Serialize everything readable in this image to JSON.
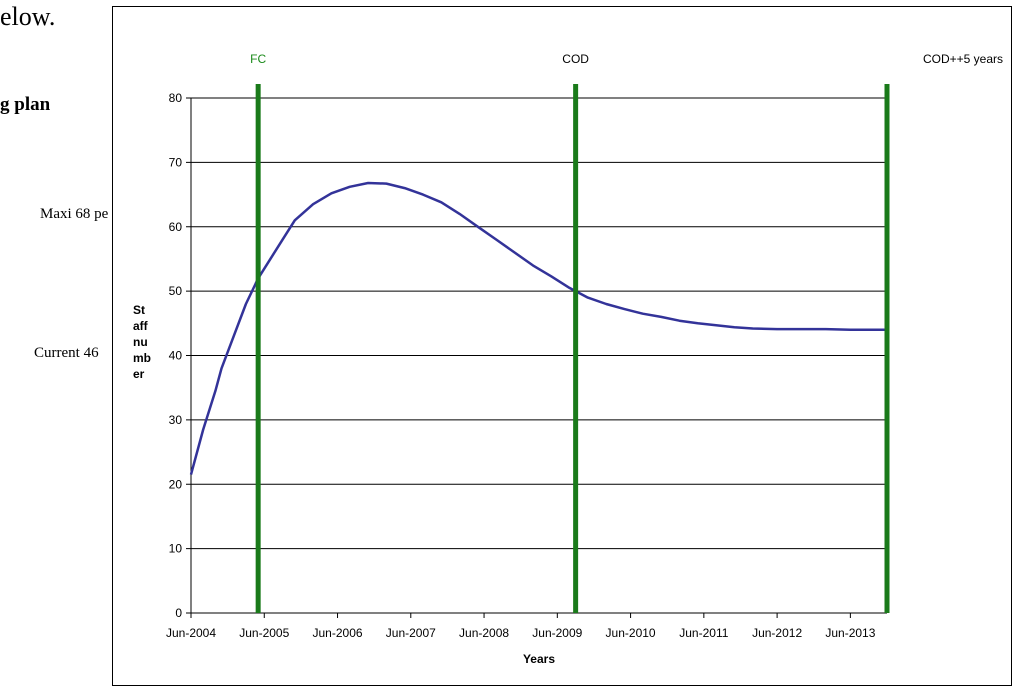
{
  "document": {
    "fragment_top": "elow.",
    "fragment_heading": "g plan",
    "fragment_maxi": "Maxi 68 pe",
    "fragment_current": "Current 46"
  },
  "chart_data": {
    "type": "line",
    "title": "",
    "xlabel": "Years",
    "ylabel_lines": [
      "St",
      "aff",
      "nu",
      "mb",
      "er"
    ],
    "ylim": [
      0,
      80
    ],
    "yticks": [
      0,
      10,
      20,
      30,
      40,
      50,
      60,
      70,
      80
    ],
    "grid": true,
    "x_axis_type": "date",
    "xlim": [
      "2004-06",
      "2013-12"
    ],
    "xticks": [
      "Jun-2004",
      "Jun-2005",
      "Jun-2006",
      "Jun-2007",
      "Jun-2008",
      "Jun-2009",
      "Jun-2010",
      "Jun-2011",
      "Jun-2012",
      "Jun-2013"
    ],
    "series": [
      {
        "color": "#333399",
        "points": [
          {
            "x": "2004-06",
            "y": 21.5
          },
          {
            "x": "2004-08",
            "y": 28.5
          },
          {
            "x": "2004-10",
            "y": 34.5
          },
          {
            "x": "2004-11",
            "y": 38.0
          },
          {
            "x": "2005-01",
            "y": 43.0
          },
          {
            "x": "2005-03",
            "y": 48.0
          },
          {
            "x": "2005-05",
            "y": 52.0
          },
          {
            "x": "2005-07",
            "y": 55.0
          },
          {
            "x": "2005-09",
            "y": 58.0
          },
          {
            "x": "2005-11",
            "y": 61.0
          },
          {
            "x": "2006-02",
            "y": 63.5
          },
          {
            "x": "2006-05",
            "y": 65.2
          },
          {
            "x": "2006-08",
            "y": 66.2
          },
          {
            "x": "2006-11",
            "y": 66.8
          },
          {
            "x": "2007-02",
            "y": 66.7
          },
          {
            "x": "2007-05",
            "y": 66.0
          },
          {
            "x": "2007-08",
            "y": 65.0
          },
          {
            "x": "2007-11",
            "y": 63.8
          },
          {
            "x": "2008-02",
            "y": 62.0
          },
          {
            "x": "2008-05",
            "y": 60.0
          },
          {
            "x": "2008-08",
            "y": 58.0
          },
          {
            "x": "2008-11",
            "y": 56.0
          },
          {
            "x": "2009-02",
            "y": 54.0
          },
          {
            "x": "2009-05",
            "y": 52.3
          },
          {
            "x": "2009-08",
            "y": 50.5
          },
          {
            "x": "2009-11",
            "y": 49.0
          },
          {
            "x": "2010-02",
            "y": 48.0
          },
          {
            "x": "2010-05",
            "y": 47.2
          },
          {
            "x": "2010-08",
            "y": 46.5
          },
          {
            "x": "2010-11",
            "y": 46.0
          },
          {
            "x": "2011-02",
            "y": 45.4
          },
          {
            "x": "2011-05",
            "y": 45.0
          },
          {
            "x": "2011-08",
            "y": 44.7
          },
          {
            "x": "2011-11",
            "y": 44.4
          },
          {
            "x": "2012-02",
            "y": 44.2
          },
          {
            "x": "2012-06",
            "y": 44.1
          },
          {
            "x": "2012-10",
            "y": 44.1
          },
          {
            "x": "2013-02",
            "y": 44.1
          },
          {
            "x": "2013-06",
            "y": 44.0
          },
          {
            "x": "2013-12",
            "y": 44.0
          }
        ]
      }
    ],
    "events": [
      {
        "label": "FC",
        "x": "2005-05",
        "line_color": "#1a7a1a",
        "label_color": "#1a8a1a"
      },
      {
        "label": "COD",
        "x": "2009-09",
        "line_color": "#1a7a1a",
        "label_color": "#000000"
      },
      {
        "label": "COD++5 years",
        "x": "2013-12",
        "line_color": "#1a7a1a",
        "label_color": "#000000"
      }
    ]
  }
}
